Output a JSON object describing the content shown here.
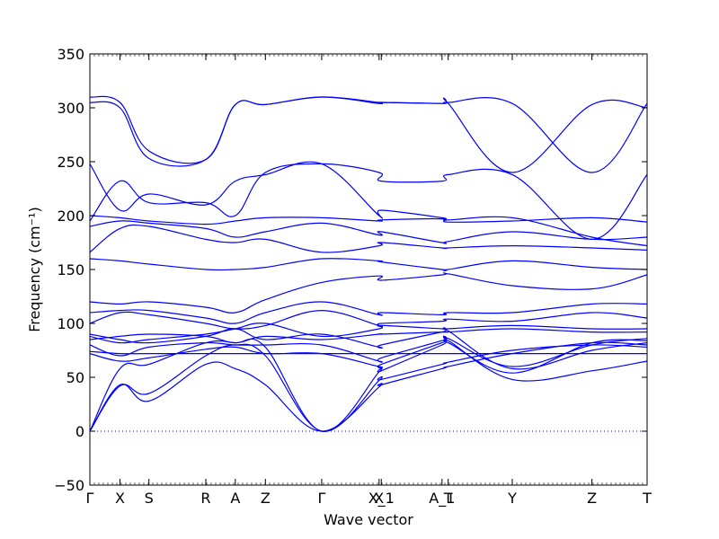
{
  "chart_data": {
    "type": "line",
    "title": "",
    "xlabel": "Wave vector",
    "ylabel": "Frequency (cm⁻¹)",
    "ylim": [
      -50,
      350
    ],
    "y_ticks": [
      -50,
      0,
      50,
      100,
      150,
      200,
      250,
      300,
      350
    ],
    "x_ticks": [
      {
        "label": "Γ",
        "pos": 0.0
      },
      {
        "label": "X",
        "pos": 0.054
      },
      {
        "label": "S",
        "pos": 0.106
      },
      {
        "label": "R",
        "pos": 0.208
      },
      {
        "label": "A",
        "pos": 0.261
      },
      {
        "label": "Z",
        "pos": 0.315
      },
      {
        "label": "Γ",
        "pos": 0.416
      },
      {
        "label": "X",
        "pos": 0.519
      },
      {
        "label": "X_1",
        "pos": 0.523
      },
      {
        "label": "A_1",
        "pos": 0.632
      },
      {
        "label": "T",
        "pos": 0.643
      },
      {
        "label": "Y",
        "pos": 0.758
      },
      {
        "label": "Z",
        "pos": 0.901
      },
      {
        "label": "T",
        "pos": 1.0
      }
    ],
    "grid": false,
    "zero_line": {
      "y": 0,
      "style": "dotted",
      "color": "#0000ff"
    },
    "series_color": "#0000ff",
    "series": [
      {
        "x": [
          0,
          0.054,
          0.106,
          0.208,
          0.261,
          0.315,
          0.416,
          0.519,
          0.523,
          0.632,
          0.643,
          0.758,
          0.901,
          1.0
        ],
        "values": [
          0,
          43,
          28,
          62,
          58,
          43,
          0,
          41,
          43,
          58,
          60,
          72,
          82,
          80
        ]
      },
      {
        "x": [
          0,
          0.054,
          0.106,
          0.208,
          0.261,
          0.315,
          0.416,
          0.519,
          0.523,
          0.632,
          0.643,
          0.758,
          0.901,
          1.0
        ],
        "values": [
          0,
          42,
          35,
          70,
          80,
          70,
          0,
          47,
          48,
          62,
          64,
          75,
          80,
          78
        ]
      },
      {
        "x": [
          0,
          0.054,
          0.106,
          0.208,
          0.261,
          0.315,
          0.416,
          0.519,
          0.523,
          0.632,
          0.643,
          0.758,
          0.901,
          1.0
        ],
        "values": [
          0,
          58,
          62,
          82,
          82,
          78,
          0,
          55,
          56,
          80,
          82,
          54,
          82,
          84
        ]
      },
      {
        "x": [
          0,
          0.054,
          0.106,
          0.208,
          0.261,
          0.315,
          0.416,
          0.519,
          0.523,
          0.632,
          0.643,
          0.758,
          0.901,
          1.0
        ],
        "values": [
          72,
          65,
          68,
          76,
          78,
          72,
          72,
          60,
          62,
          82,
          84,
          48,
          56,
          65
        ]
      },
      {
        "x": [
          0,
          0.054,
          0.106,
          0.208,
          0.261,
          0.315,
          0.416,
          0.519,
          0.523,
          0.632,
          0.643,
          0.758,
          0.901,
          1.0
        ],
        "values": [
          74,
          72,
          72,
          72,
          72,
          72,
          72,
          72,
          72,
          72,
          72,
          72,
          72,
          72
        ]
      },
      {
        "x": [
          0,
          0.054,
          0.106,
          0.208,
          0.261,
          0.315,
          0.416,
          0.519,
          0.523,
          0.632,
          0.643,
          0.758,
          0.901,
          1.0
        ],
        "values": [
          80,
          70,
          78,
          82,
          80,
          80,
          80,
          65,
          68,
          84,
          86,
          60,
          80,
          86
        ]
      },
      {
        "x": [
          0,
          0.054,
          0.106,
          0.208,
          0.261,
          0.315,
          0.416,
          0.519,
          0.523,
          0.632,
          0.643,
          0.758,
          0.901,
          1.0
        ],
        "values": [
          85,
          88,
          90,
          88,
          82,
          88,
          85,
          90,
          90,
          92,
          92,
          95,
          92,
          92
        ]
      },
      {
        "x": [
          0,
          0.054,
          0.106,
          0.208,
          0.261,
          0.315,
          0.416,
          0.519,
          0.523,
          0.632,
          0.643,
          0.758,
          0.901,
          1.0
        ],
        "values": [
          88,
          82,
          85,
          90,
          95,
          100,
          88,
          95,
          98,
          95,
          95,
          98,
          95,
          95
        ]
      },
      {
        "x": [
          0,
          0.054,
          0.106,
          0.208,
          0.261,
          0.315,
          0.416,
          0.519,
          0.523,
          0.632,
          0.643,
          0.758,
          0.901,
          1.0
        ],
        "values": [
          90,
          85,
          82,
          88,
          95,
          85,
          90,
          78,
          80,
          92,
          93,
          58,
          75,
          82
        ]
      },
      {
        "x": [
          0,
          0.054,
          0.106,
          0.208,
          0.261,
          0.315,
          0.416,
          0.519,
          0.523,
          0.632,
          0.643,
          0.758,
          0.901,
          1.0
        ],
        "values": [
          100,
          110,
          108,
          100,
          95,
          98,
          112,
          98,
          100,
          102,
          104,
          102,
          110,
          105
        ]
      },
      {
        "x": [
          0,
          0.054,
          0.106,
          0.208,
          0.261,
          0.315,
          0.416,
          0.519,
          0.523,
          0.632,
          0.643,
          0.758,
          0.901,
          1.0
        ],
        "values": [
          110,
          112,
          112,
          105,
          100,
          110,
          120,
          108,
          110,
          108,
          110,
          110,
          118,
          118
        ]
      },
      {
        "x": [
          0,
          0.054,
          0.106,
          0.208,
          0.261,
          0.315,
          0.416,
          0.519,
          0.523,
          0.632,
          0.643,
          0.758,
          0.901,
          1.0
        ],
        "values": [
          120,
          118,
          120,
          115,
          110,
          122,
          138,
          144,
          140,
          145,
          146,
          135,
          132,
          145
        ]
      },
      {
        "x": [
          0,
          0.054,
          0.106,
          0.208,
          0.261,
          0.315,
          0.416,
          0.519,
          0.523,
          0.632,
          0.643,
          0.758,
          0.901,
          1.0
        ],
        "values": [
          160,
          158,
          155,
          150,
          150,
          152,
          160,
          158,
          157,
          150,
          150,
          158,
          152,
          150
        ]
      },
      {
        "x": [
          0,
          0.054,
          0.106,
          0.208,
          0.261,
          0.315,
          0.416,
          0.519,
          0.523,
          0.632,
          0.643,
          0.758,
          0.901,
          1.0
        ],
        "values": [
          166,
          188,
          190,
          178,
          175,
          178,
          166,
          172,
          175,
          170,
          170,
          172,
          170,
          168
        ]
      },
      {
        "x": [
          0,
          0.054,
          0.106,
          0.208,
          0.261,
          0.315,
          0.416,
          0.519,
          0.523,
          0.632,
          0.643,
          0.758,
          0.901,
          1.0
        ],
        "values": [
          190,
          195,
          193,
          188,
          180,
          185,
          193,
          182,
          185,
          175,
          176,
          185,
          178,
          180
        ]
      },
      {
        "x": [
          0,
          0.054,
          0.106,
          0.208,
          0.261,
          0.315,
          0.416,
          0.519,
          0.523,
          0.632,
          0.643,
          0.758,
          0.901,
          1.0
        ],
        "values": [
          200,
          198,
          195,
          192,
          195,
          198,
          198,
          195,
          196,
          197,
          194,
          195,
          198,
          194
        ]
      },
      {
        "x": [
          0,
          0.054,
          0.106,
          0.208,
          0.261,
          0.315,
          0.416,
          0.519,
          0.523,
          0.632,
          0.643,
          0.758,
          0.901,
          1.0
        ],
        "values": [
          248,
          205,
          220,
          210,
          232,
          238,
          248,
          200,
          205,
          198,
          196,
          198,
          180,
          172
        ]
      },
      {
        "x": [
          0,
          0.054,
          0.106,
          0.208,
          0.261,
          0.315,
          0.416,
          0.519,
          0.523,
          0.632,
          0.643,
          0.758,
          0.901,
          1.0
        ],
        "values": [
          195,
          232,
          212,
          212,
          200,
          240,
          248,
          240,
          232,
          232,
          238,
          238,
          178,
          238
        ]
      },
      {
        "x": [
          0,
          0.054,
          0.106,
          0.208,
          0.261,
          0.315,
          0.416,
          0.519,
          0.523,
          0.632,
          0.643,
          0.758,
          0.901,
          1.0
        ],
        "values": [
          310,
          305,
          260,
          252,
          303,
          303,
          310,
          304,
          305,
          304,
          305,
          304,
          240,
          304
        ]
      },
      {
        "x": [
          0,
          0.054,
          0.106,
          0.208,
          0.261,
          0.315,
          0.416,
          0.519,
          0.523,
          0.632,
          0.643,
          0.758,
          0.901,
          1.0
        ],
        "values": [
          305,
          300,
          253,
          252,
          303,
          303,
          310,
          305,
          305,
          304,
          304,
          240,
          303,
          300
        ]
      }
    ]
  }
}
